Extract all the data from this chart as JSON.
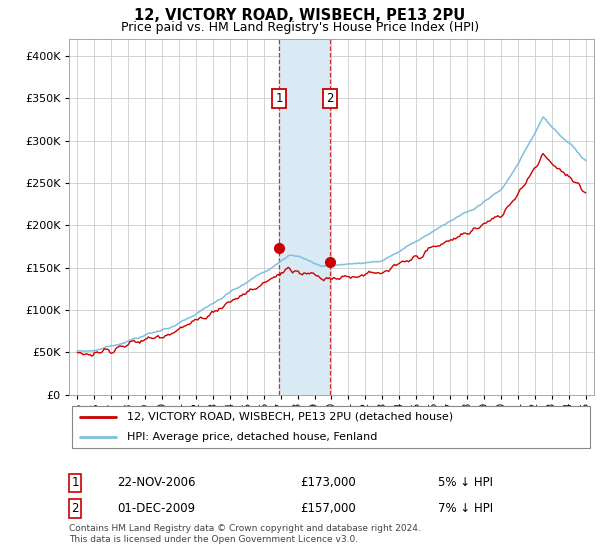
{
  "title": "12, VICTORY ROAD, WISBECH, PE13 2PU",
  "subtitle": "Price paid vs. HM Land Registry's House Price Index (HPI)",
  "legend_line1": "12, VICTORY ROAD, WISBECH, PE13 2PU (detached house)",
  "legend_line2": "HPI: Average price, detached house, Fenland",
  "annotation1": {
    "num": "1",
    "date": "22-NOV-2006",
    "price": "£173,000",
    "pct": "5% ↓ HPI"
  },
  "annotation2": {
    "num": "2",
    "date": "01-DEC-2009",
    "price": "£157,000",
    "pct": "7% ↓ HPI"
  },
  "footnote1": "Contains HM Land Registry data © Crown copyright and database right 2024.",
  "footnote2": "This data is licensed under the Open Government Licence v3.0.",
  "sale1_year": 2006.9,
  "sale1_price": 173000,
  "sale2_year": 2009.92,
  "sale2_price": 157000,
  "hpi_color": "#7fbfdf",
  "price_color": "#cc0000",
  "shaded_color": "#daeaf5",
  "background_color": "#ffffff",
  "grid_color": "#cccccc",
  "ylim": [
    0,
    420000
  ],
  "yticks": [
    0,
    50000,
    100000,
    150000,
    200000,
    250000,
    300000,
    350000,
    400000
  ],
  "xlim": [
    1994.5,
    2025.5
  ],
  "xticks": [
    1995,
    1996,
    1997,
    1998,
    1999,
    2000,
    2001,
    2002,
    2003,
    2004,
    2005,
    2006,
    2007,
    2008,
    2009,
    2010,
    2011,
    2012,
    2013,
    2014,
    2015,
    2016,
    2017,
    2018,
    2019,
    2020,
    2021,
    2022,
    2023,
    2024,
    2025
  ]
}
